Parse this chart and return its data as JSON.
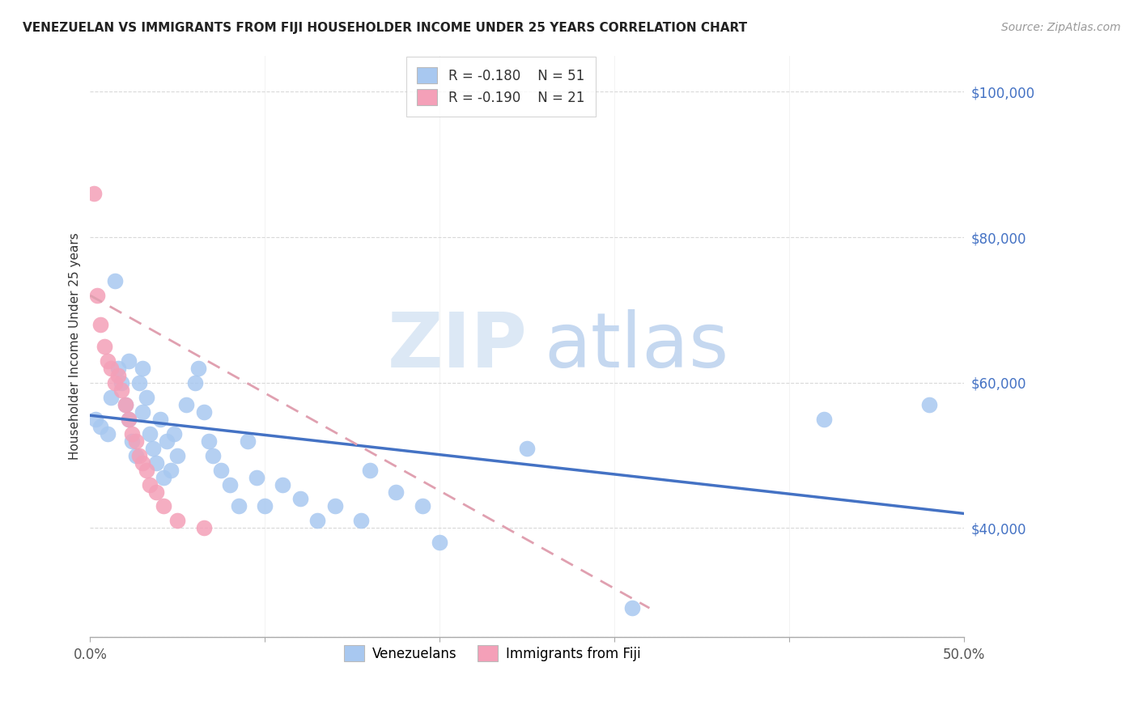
{
  "title": "VENEZUELAN VS IMMIGRANTS FROM FIJI HOUSEHOLDER INCOME UNDER 25 YEARS CORRELATION CHART",
  "source": "Source: ZipAtlas.com",
  "ylabel": "Householder Income Under 25 years",
  "xlim": [
    0.0,
    0.5
  ],
  "ylim": [
    25000,
    105000
  ],
  "background_color": "#ffffff",
  "grid_color": "#d0d0d0",
  "legend_label1": "Venezuelans",
  "legend_label2": "Immigrants from Fiji",
  "color_blue": "#a8c8f0",
  "color_pink": "#f4a0b8",
  "trendline_blue": "#4472c4",
  "trendline_pink": "#e0a0b0",
  "venezuelan_x": [
    0.003,
    0.006,
    0.01,
    0.012,
    0.014,
    0.016,
    0.018,
    0.02,
    0.022,
    0.022,
    0.024,
    0.026,
    0.028,
    0.03,
    0.03,
    0.032,
    0.034,
    0.036,
    0.038,
    0.04,
    0.042,
    0.044,
    0.046,
    0.048,
    0.05,
    0.055,
    0.06,
    0.062,
    0.065,
    0.068,
    0.07,
    0.075,
    0.08,
    0.085,
    0.09,
    0.095,
    0.1,
    0.11,
    0.12,
    0.13,
    0.14,
    0.155,
    0.16,
    0.175,
    0.19,
    0.2,
    0.25,
    0.31,
    0.42,
    0.48
  ],
  "venezuelan_y": [
    55000,
    54000,
    53000,
    58000,
    74000,
    62000,
    60000,
    57000,
    55000,
    63000,
    52000,
    50000,
    60000,
    56000,
    62000,
    58000,
    53000,
    51000,
    49000,
    55000,
    47000,
    52000,
    48000,
    53000,
    50000,
    57000,
    60000,
    62000,
    56000,
    52000,
    50000,
    48000,
    46000,
    43000,
    52000,
    47000,
    43000,
    46000,
    44000,
    41000,
    43000,
    41000,
    48000,
    45000,
    43000,
    38000,
    51000,
    29000,
    55000,
    57000
  ],
  "fiji_x": [
    0.002,
    0.004,
    0.006,
    0.008,
    0.01,
    0.012,
    0.014,
    0.016,
    0.018,
    0.02,
    0.022,
    0.024,
    0.026,
    0.028,
    0.03,
    0.032,
    0.034,
    0.038,
    0.042,
    0.05,
    0.065
  ],
  "fiji_y": [
    86000,
    72000,
    68000,
    65000,
    63000,
    62000,
    60000,
    61000,
    59000,
    57000,
    55000,
    53000,
    52000,
    50000,
    49000,
    48000,
    46000,
    45000,
    43000,
    41000,
    40000
  ],
  "ven_trend_x0": 0.0,
  "ven_trend_y0": 55500,
  "ven_trend_x1": 0.5,
  "ven_trend_y1": 42000,
  "fiji_trend_x0": 0.0,
  "fiji_trend_y0": 72000,
  "fiji_trend_x1": 0.32,
  "fiji_trend_y1": 29000
}
